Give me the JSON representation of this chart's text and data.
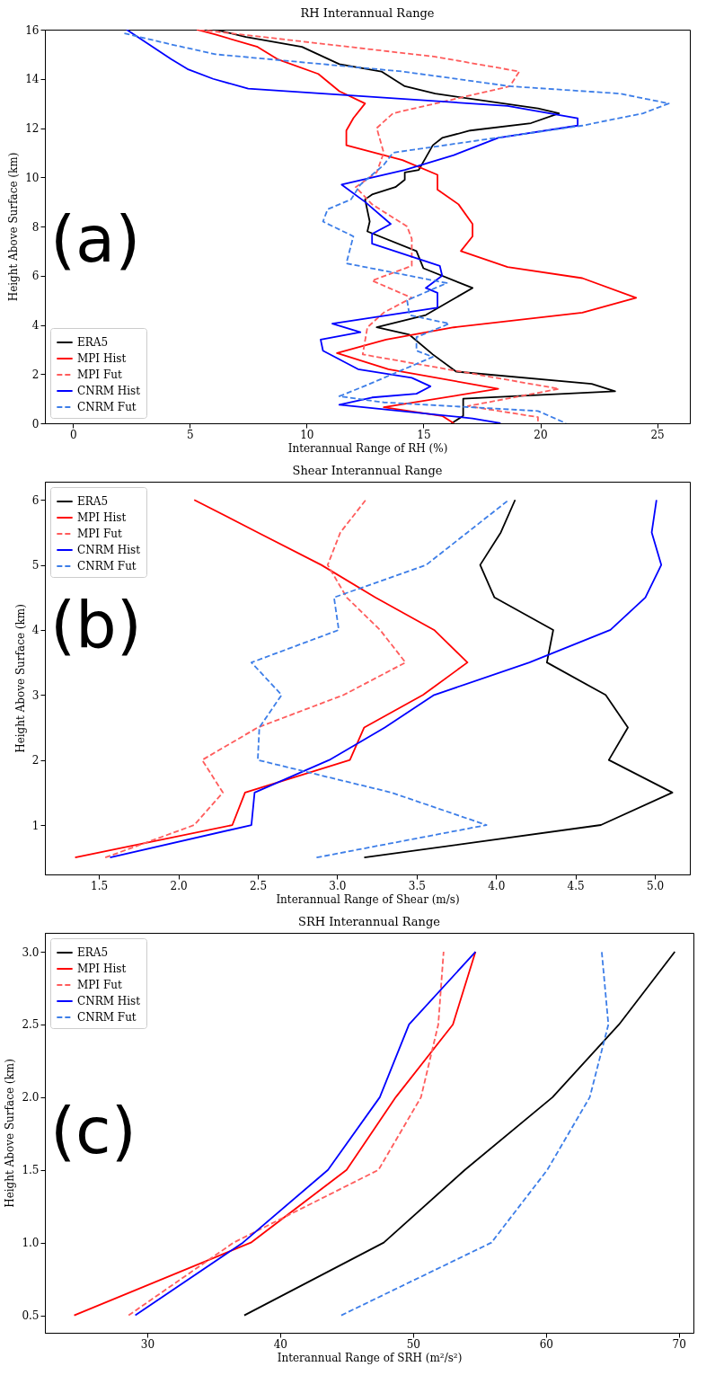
{
  "chart_data": [
    {
      "type": "line",
      "title": "RH Interannual Range",
      "xlabel": "Interannual Range of RH (%)",
      "ylabel": "Height Above Surface (km)",
      "annotations": [
        "(a)"
      ],
      "xlim": [
        -1.2,
        26.4
      ],
      "ylim": [
        0,
        16
      ],
      "xticks": [
        0,
        5,
        10,
        15,
        20,
        25
      ],
      "yticks": [
        0,
        2,
        4,
        6,
        8,
        10,
        12,
        14,
        16
      ],
      "legend": "bottom left",
      "series": [
        {
          "name": "ERA5",
          "color": "#000000",
          "line_style": "solid",
          "x": [
            6.1,
            7.4,
            9.8,
            11.4,
            13.2,
            14.2,
            15.5,
            19.9,
            20.8,
            19.6,
            17.0,
            15.8,
            15.4,
            15.1,
            14.8,
            14.2,
            14.2,
            13.8,
            12.8,
            12.5,
            12.7,
            12.6,
            14.7,
            15.0,
            17.1,
            15.1,
            13.0,
            14.4,
            15.4,
            16.4,
            22.2,
            23.2,
            16.7,
            16.7,
            16.2
          ],
          "values": [
            16.0,
            15.7,
            15.3,
            14.6,
            14.3,
            13.7,
            13.4,
            12.8,
            12.6,
            12.2,
            11.9,
            11.6,
            11.3,
            10.8,
            10.3,
            10.2,
            9.9,
            9.6,
            9.3,
            9.1,
            8.2,
            7.8,
            7.0,
            6.3,
            5.5,
            4.4,
            3.9,
            3.6,
            2.8,
            2.1,
            1.6,
            1.3,
            1.0,
            0.3,
            0.0
          ]
        },
        {
          "name": "MPI Hist",
          "color": "#ff0000",
          "line_style": "solid",
          "x": [
            5.3,
            6.1,
            7.9,
            8.75,
            10.5,
            11.4,
            12.5,
            12.0,
            11.7,
            11.7,
            14.1,
            15.6,
            15.6,
            16.5,
            17.1,
            17.1,
            16.6,
            18.6,
            21.8,
            24.1,
            21.8,
            16.3,
            13.4,
            11.3,
            13.5,
            18.2,
            13.3,
            15.8,
            16.3
          ],
          "values": [
            16.0,
            15.8,
            15.3,
            14.8,
            14.2,
            13.5,
            13.0,
            12.4,
            11.9,
            11.3,
            10.7,
            10.1,
            9.5,
            8.9,
            8.1,
            7.6,
            7.0,
            6.35,
            5.9,
            5.1,
            4.5,
            3.9,
            3.4,
            2.85,
            2.2,
            1.4,
            0.65,
            0.3,
            0.0
          ]
        },
        {
          "name": "MPI Fut",
          "color": "#ff5c5c",
          "line_style": "dashed",
          "x": [
            5.4,
            15.5,
            19.1,
            18.7,
            13.7,
            13.0,
            13.3,
            13.0,
            12.1,
            12.8,
            14.3,
            14.5,
            14.5,
            12.8,
            14.5,
            13.3,
            12.6,
            12.4,
            20.8,
            16.9,
            19.9,
            19.9
          ],
          "values": [
            16.0,
            14.9,
            14.3,
            13.7,
            12.6,
            12.0,
            11.0,
            10.2,
            9.6,
            8.9,
            8.0,
            7.5,
            6.4,
            5.8,
            5.1,
            4.5,
            3.9,
            2.8,
            1.4,
            0.7,
            0.25,
            0.0
          ]
        },
        {
          "name": "CNRM Hist",
          "color": "#0000ff",
          "line_style": "solid",
          "x": [
            2.3,
            4.2,
            4.9,
            6.0,
            7.5,
            18.6,
            21.6,
            21.6,
            18.2,
            16.3,
            14.2,
            11.5,
            12.5,
            13.6,
            12.8,
            12.8,
            15.7,
            15.8,
            15.1,
            15.6,
            15.6,
            11.1,
            12.3,
            10.6,
            10.7,
            12.2,
            14.5,
            15.3,
            14.7,
            12.8,
            11.4,
            17.1,
            18.3
          ],
          "values": [
            16.0,
            14.8,
            14.4,
            14.0,
            13.6,
            12.9,
            12.4,
            12.1,
            11.6,
            10.9,
            10.3,
            9.7,
            9.0,
            8.1,
            7.7,
            7.3,
            6.4,
            6.0,
            5.5,
            5.3,
            4.7,
            4.05,
            3.7,
            3.4,
            2.95,
            2.2,
            1.85,
            1.5,
            1.2,
            1.05,
            0.75,
            0.2,
            0.0
          ]
        },
        {
          "name": "CNRM Fut",
          "color": "#3d7ee8",
          "line_style": "dashed",
          "x": [
            2.2,
            4.2,
            6.1,
            14.1,
            18.7,
            23.4,
            25.5,
            24.4,
            21.8,
            18.1,
            13.7,
            13.3,
            12.3,
            11.9,
            10.9,
            10.7,
            12.0,
            11.7,
            16.0,
            14.3,
            14.4,
            16.1,
            14.7,
            14.7,
            15.4,
            12.7,
            11.4,
            13.3,
            19.9,
            21.1
          ],
          "values": [
            15.85,
            15.4,
            15.0,
            14.3,
            13.7,
            13.4,
            13.0,
            12.6,
            12.1,
            11.6,
            11.0,
            10.5,
            9.7,
            9.1,
            8.7,
            8.2,
            7.6,
            6.5,
            5.7,
            5.0,
            4.4,
            4.05,
            3.5,
            2.95,
            2.7,
            1.6,
            1.1,
            0.85,
            0.5,
            0.0
          ]
        }
      ]
    },
    {
      "type": "line",
      "title": "Shear Interannual Range",
      "xlabel": "Interannual Range of Shear (m/s)",
      "ylabel": "Height Above Surface (km)",
      "annotations": [
        "(b)"
      ],
      "xlim": [
        1.16,
        5.22
      ],
      "ylim": [
        0.24,
        6.28
      ],
      "xticks": [
        1.5,
        {
          "value": 2,
          "label": "2.0"
        },
        2.5,
        {
          "value": 3,
          "label": "3.0"
        },
        3.5,
        {
          "value": 4,
          "label": "4.0"
        },
        4.5,
        {
          "value": 5,
          "label": "5.0"
        }
      ],
      "yticks": [
        1,
        2,
        3,
        4,
        5,
        6
      ],
      "legend": "top left",
      "series": [
        {
          "name": "ERA5",
          "color": "#000000",
          "line_style": "solid",
          "x": [
            3.17,
            4.66,
            5.11,
            4.71,
            4.83,
            4.69,
            4.32,
            4.36,
            3.99,
            3.9,
            4.03,
            4.12
          ],
          "values": [
            0.5,
            1,
            1.5,
            2,
            2.5,
            3,
            3.5,
            4,
            4.5,
            5,
            5.5,
            6
          ]
        },
        {
          "name": "MPI Hist",
          "color": "#ff0000",
          "line_style": "solid",
          "x": [
            1.35,
            2.34,
            2.42,
            3.08,
            3.17,
            3.54,
            3.82,
            3.61,
            3.24,
            2.9,
            2.5,
            2.1
          ],
          "values": [
            0.5,
            1,
            1.5,
            2,
            2.5,
            3,
            3.5,
            4,
            4.5,
            5,
            5.5,
            6
          ]
        },
        {
          "name": "MPI Fut",
          "color": "#ff5c5c",
          "line_style": "dashed",
          "x": [
            1.54,
            2.1,
            2.28,
            2.15,
            2.5,
            3.04,
            3.43,
            3.27,
            3.06,
            2.94,
            3.02,
            3.18
          ],
          "values": [
            0.5,
            1,
            1.5,
            2,
            2.5,
            3,
            3.5,
            4,
            4.5,
            5,
            5.5,
            6
          ]
        },
        {
          "name": "CNRM Hist",
          "color": "#0000ff",
          "line_style": "solid",
          "x": [
            1.57,
            2.46,
            2.48,
            2.95,
            3.3,
            3.61,
            4.21,
            4.72,
            4.94,
            5.04,
            4.98,
            5.01
          ],
          "values": [
            0.5,
            1,
            1.5,
            2,
            2.5,
            3,
            3.5,
            4,
            4.5,
            5,
            5.5,
            6
          ]
        },
        {
          "name": "CNRM Fut",
          "color": "#3d7ee8",
          "line_style": "dashed",
          "x": [
            2.87,
            3.94,
            3.34,
            2.5,
            2.51,
            2.65,
            2.46,
            3.01,
            2.98,
            3.56,
            3.82,
            4.08
          ],
          "values": [
            0.5,
            1,
            1.5,
            2,
            2.5,
            3,
            3.5,
            4,
            4.5,
            5,
            5.5,
            6
          ]
        }
      ]
    },
    {
      "type": "line",
      "title": "SRH Interannual Range",
      "xlabel": "Interannual Range of SRH (m²/s²)",
      "ylabel": "Height Above Surface (km)",
      "annotations": [
        "(c)"
      ],
      "xlim": [
        22.3,
        71.1
      ],
      "ylim": [
        0.38,
        3.13
      ],
      "xticks": [
        30,
        40,
        50,
        60,
        70
      ],
      "yticks": [
        0.5,
        {
          "value": 1,
          "label": "1.0"
        },
        1.5,
        {
          "value": 2,
          "label": "2.0"
        },
        2.5,
        {
          "value": 3,
          "label": "3.0"
        }
      ],
      "legend": "top left",
      "series": [
        {
          "name": "ERA5",
          "color": "#000000",
          "line_style": "solid",
          "x": [
            37.3,
            47.8,
            53.9,
            60.5,
            65.5,
            69.7
          ],
          "values": [
            0.5,
            1,
            1.5,
            2,
            2.5,
            3
          ]
        },
        {
          "name": "MPI Hist",
          "color": "#ff0000",
          "line_style": "solid",
          "x": [
            24.5,
            37.8,
            45.0,
            48.7,
            53.0,
            54.7
          ],
          "values": [
            0.5,
            1,
            1.5,
            2,
            2.5,
            3
          ]
        },
        {
          "name": "MPI Fut",
          "color": "#ff5c5c",
          "line_style": "dashed",
          "x": [
            28.6,
            36.5,
            47.4,
            50.6,
            51.9,
            52.3
          ],
          "values": [
            0.5,
            1,
            1.5,
            2,
            2.5,
            3
          ]
        },
        {
          "name": "CNRM Hist",
          "color": "#0000ff",
          "line_style": "solid",
          "x": [
            29.1,
            37.2,
            43.6,
            47.5,
            49.7,
            54.7
          ],
          "values": [
            0.5,
            1,
            1.5,
            2,
            2.5,
            3
          ]
        },
        {
          "name": "CNRM Fut",
          "color": "#3d7ee8",
          "line_style": "dashed",
          "x": [
            44.6,
            55.9,
            60.1,
            63.3,
            64.7,
            64.2
          ],
          "values": [
            0.5,
            1,
            1.5,
            2,
            2.5,
            3
          ]
        }
      ]
    }
  ]
}
